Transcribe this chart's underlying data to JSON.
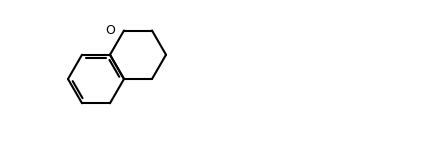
{
  "bg_color": "#ffffff",
  "bond_color": "#000000",
  "lw": 1.5,
  "fontsize": 9,
  "fig_w": 4.3,
  "fig_h": 1.54,
  "dpi": 100
}
